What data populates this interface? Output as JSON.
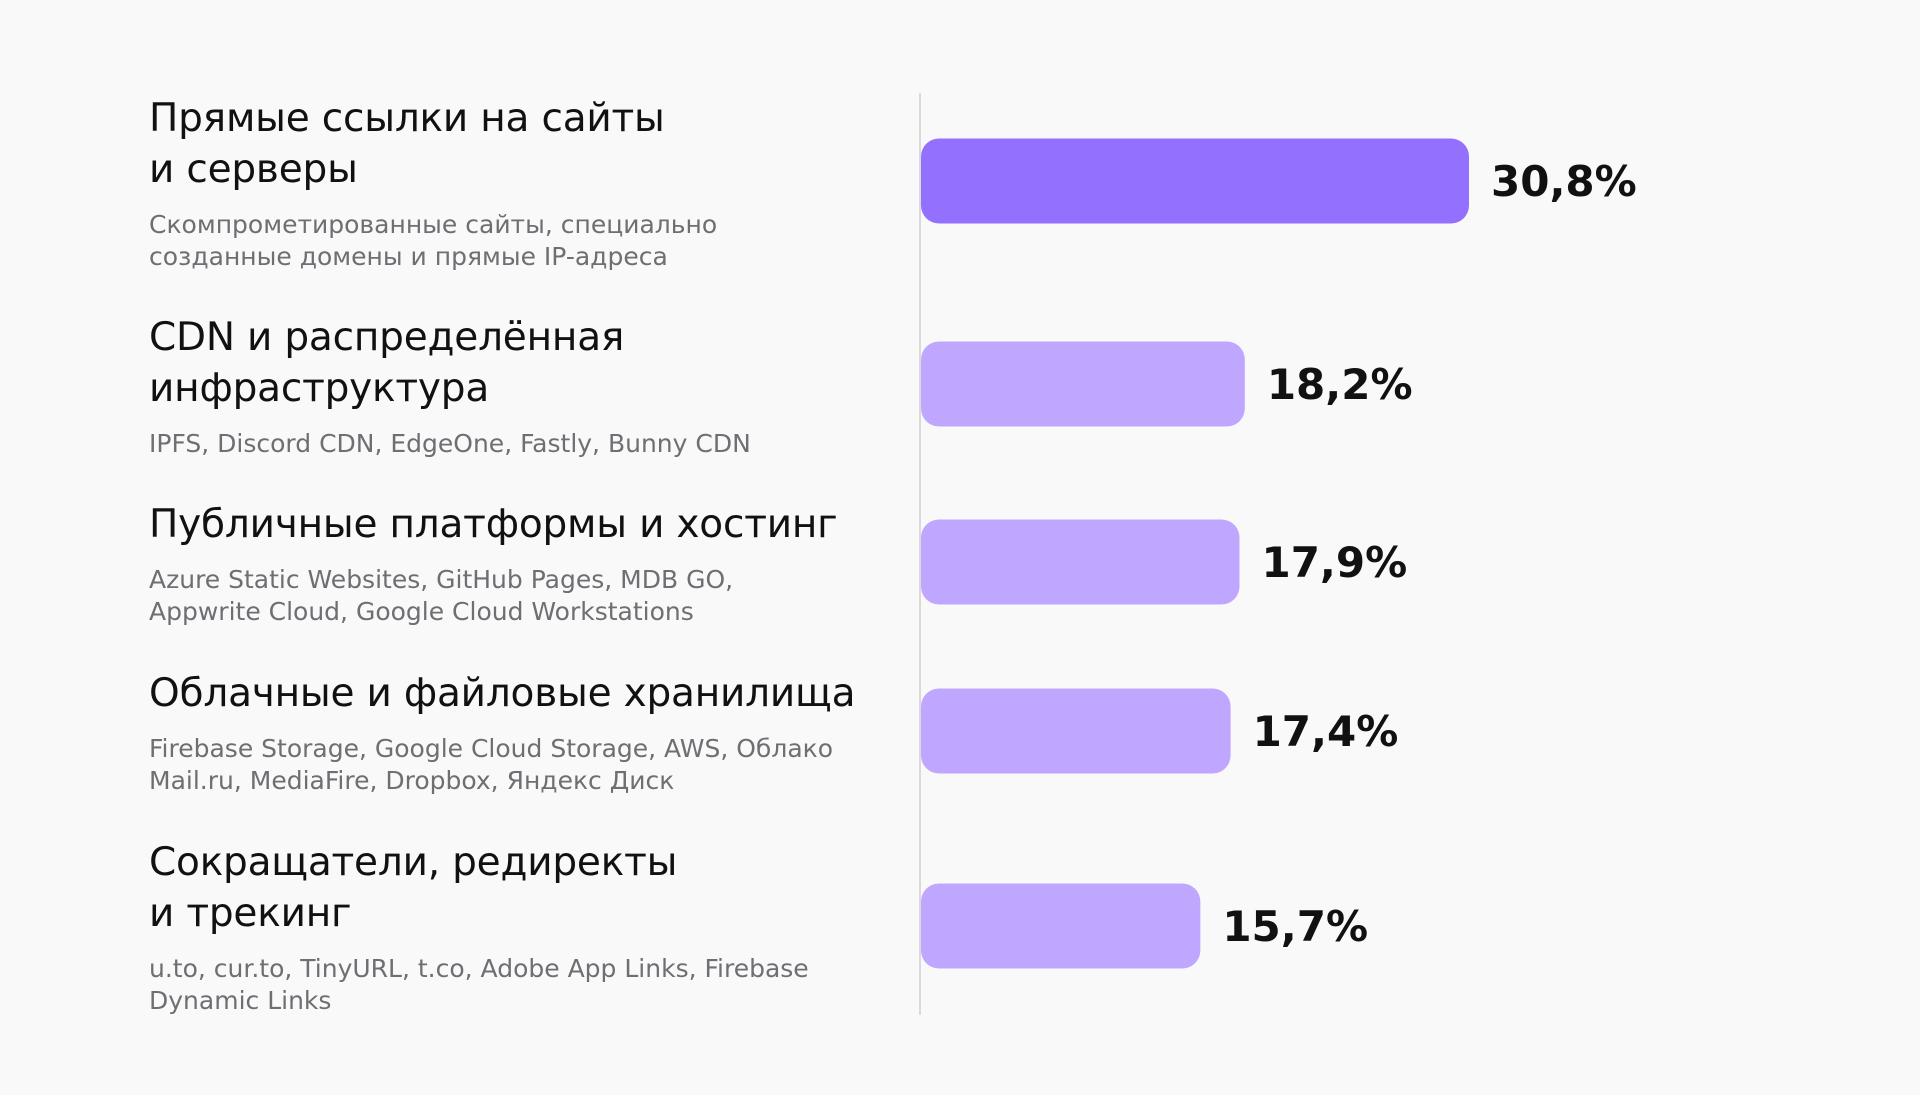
{
  "colors": {
    "highlight_bar": "#9470ff",
    "bar": "#bfa6ff",
    "axis_line": "#dadada",
    "title_text": "#111111",
    "sub_text": "#6e6e73",
    "value_text": "#111111",
    "background": "#f9f9f9"
  },
  "chart_data": {
    "type": "bar",
    "orientation": "horizontal",
    "categories": [
      {
        "title_line1": "Прямые ссылки на сайты",
        "title_line2": "и серверы",
        "sub_line1": "Скомпрометированные сайты, специально",
        "sub_line2": "созданные домены и прямые IP-адреса"
      },
      {
        "title_line1": "CDN и распределённая",
        "title_line2": "инфраструктура",
        "sub_line1": "IPFS, Discord CDN, EdgeOne, Fastly, Bunny CDN",
        "sub_line2": ""
      },
      {
        "title_line1": "Публичные платформы и хостинг",
        "title_line2": "",
        "sub_line1": "Azure Static Websites, GitHub Pages, MDB GO,",
        "sub_line2": "Appwrite Cloud, Google Cloud Workstations"
      },
      {
        "title_line1": "Облачные и файловые хранилища",
        "title_line2": "",
        "sub_line1": "Firebase Storage, Google Cloud Storage, AWS, Облако",
        "sub_line2": "Mail.ru, MediaFire, Dropbox, Яндекс Диск"
      },
      {
        "title_line1": "Сокращатели, редиректы",
        "title_line2": "и трекинг",
        "sub_line1": "u.to, cur.to, TinyURL, t.co, Adobe App Links, Firebase",
        "sub_line2": "Dynamic Links"
      }
    ],
    "values": [
      30.8,
      18.2,
      17.9,
      17.4,
      15.7
    ],
    "value_labels": [
      "30,8%",
      "18,2%",
      "17,9%",
      "17,4%",
      "15,7%"
    ],
    "unit": "%",
    "highlighted_index": 0,
    "grid": false,
    "legend": "none"
  }
}
